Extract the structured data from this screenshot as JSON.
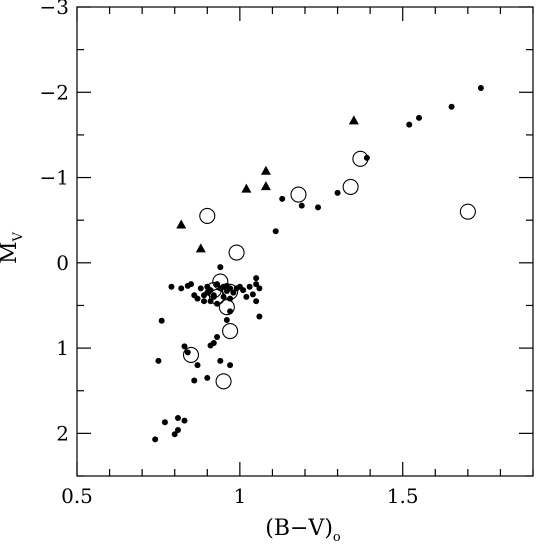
{
  "chart_data": {
    "type": "scatter",
    "title": "",
    "xlabel": {
      "main": "(B−V)",
      "subscript": "o"
    },
    "ylabel": {
      "main": "M",
      "subscript": "V"
    },
    "xlim": [
      0.5,
      1.9
    ],
    "ylim": [
      2.5,
      -3.0
    ],
    "y_inverted": true,
    "grid": false,
    "x_ticks": [
      {
        "value": 0.5,
        "label": "0.5"
      },
      {
        "value": 1.0,
        "label": "1"
      },
      {
        "value": 1.5,
        "label": "1.5"
      }
    ],
    "y_ticks": [
      {
        "value": -3,
        "label": "−3"
      },
      {
        "value": -2,
        "label": "−2"
      },
      {
        "value": -1,
        "label": "−1"
      },
      {
        "value": 0,
        "label": "0"
      },
      {
        "value": 1,
        "label": "1"
      },
      {
        "value": 2,
        "label": "2"
      }
    ],
    "series": [
      {
        "marker": "filled-circle",
        "points": [
          [
            1.74,
            -2.05
          ],
          [
            1.65,
            -1.83
          ],
          [
            1.55,
            -1.7
          ],
          [
            1.52,
            -1.62
          ],
          [
            1.39,
            -1.23
          ],
          [
            1.3,
            -0.82
          ],
          [
            1.24,
            -0.65
          ],
          [
            1.19,
            -0.67
          ],
          [
            1.13,
            -0.75
          ],
          [
            1.11,
            -0.37
          ],
          [
            0.79,
            0.28
          ],
          [
            0.82,
            0.3
          ],
          [
            0.84,
            0.27
          ],
          [
            0.85,
            0.25
          ],
          [
            0.86,
            0.38
          ],
          [
            0.87,
            0.42
          ],
          [
            0.88,
            0.3
          ],
          [
            0.89,
            0.45
          ],
          [
            0.89,
            0.38
          ],
          [
            0.9,
            0.35
          ],
          [
            0.9,
            0.28
          ],
          [
            0.91,
            0.32
          ],
          [
            0.91,
            0.45
          ],
          [
            0.92,
            0.4
          ],
          [
            0.92,
            0.38
          ],
          [
            0.93,
            0.25
          ],
          [
            0.93,
            0.48
          ],
          [
            0.94,
            0.3
          ],
          [
            0.94,
            0.05
          ],
          [
            0.95,
            0.4
          ],
          [
            0.95,
            0.28
          ],
          [
            0.96,
            0.33
          ],
          [
            0.96,
            0.27
          ],
          [
            0.97,
            0.3
          ],
          [
            0.97,
            0.42
          ],
          [
            0.98,
            0.35
          ],
          [
            0.99,
            0.3
          ],
          [
            1.0,
            0.28
          ],
          [
            1.01,
            0.32
          ],
          [
            1.02,
            0.4
          ],
          [
            1.03,
            0.28
          ],
          [
            1.04,
            0.37
          ],
          [
            1.05,
            0.45
          ],
          [
            1.06,
            0.3
          ],
          [
            1.06,
            0.63
          ],
          [
            1.05,
            0.18
          ],
          [
            1.05,
            0.25
          ],
          [
            0.97,
            0.57
          ],
          [
            0.96,
            0.67
          ],
          [
            0.93,
            0.87
          ],
          [
            0.92,
            0.94
          ],
          [
            0.91,
            0.97
          ],
          [
            0.94,
            1.15
          ],
          [
            0.97,
            1.2
          ],
          [
            0.9,
            1.35
          ],
          [
            0.87,
            1.2
          ],
          [
            0.84,
            1.05
          ],
          [
            0.83,
            0.98
          ],
          [
            0.76,
            0.68
          ],
          [
            0.75,
            1.15
          ],
          [
            0.86,
            1.38
          ],
          [
            0.77,
            1.87
          ],
          [
            0.81,
            1.82
          ],
          [
            0.83,
            1.85
          ],
          [
            0.81,
            1.96
          ],
          [
            0.8,
            2.01
          ],
          [
            0.74,
            2.07
          ]
        ]
      },
      {
        "marker": "open-circle",
        "points": [
          [
            1.7,
            -0.6
          ],
          [
            1.37,
            -1.22
          ],
          [
            1.34,
            -0.89
          ],
          [
            1.18,
            -0.8
          ],
          [
            0.9,
            -0.55
          ],
          [
            0.99,
            -0.12
          ],
          [
            0.94,
            0.22
          ],
          [
            0.92,
            0.32
          ],
          [
            0.93,
            0.4
          ],
          [
            0.97,
            0.34
          ],
          [
            0.96,
            0.52
          ],
          [
            0.97,
            0.8
          ],
          [
            0.85,
            1.08
          ],
          [
            0.95,
            1.39
          ]
        ]
      },
      {
        "marker": "filled-triangle",
        "points": [
          [
            1.35,
            -1.67
          ],
          [
            1.08,
            -1.08
          ],
          [
            1.08,
            -0.9
          ],
          [
            1.02,
            -0.87
          ],
          [
            0.82,
            -0.45
          ],
          [
            0.88,
            -0.17
          ]
        ]
      }
    ]
  }
}
